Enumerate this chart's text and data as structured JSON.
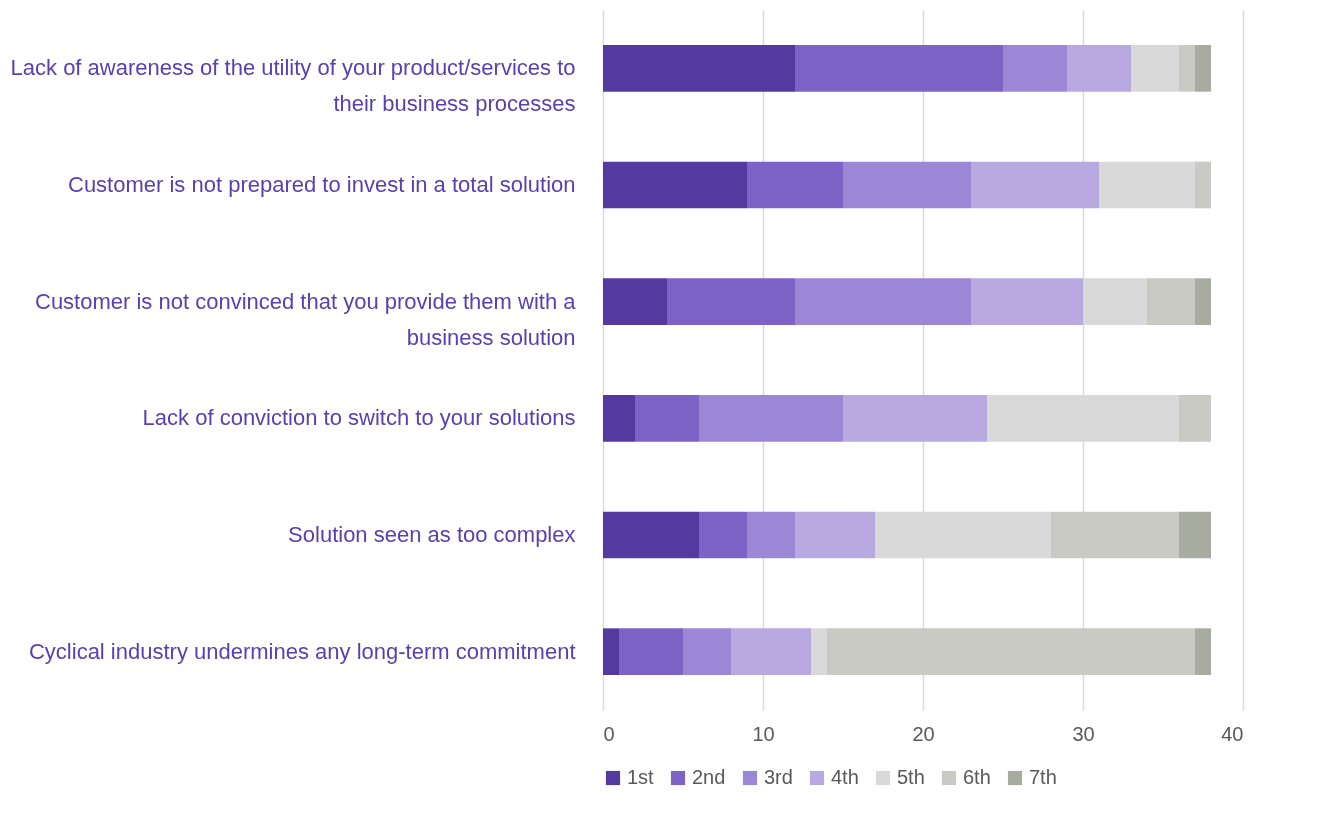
{
  "chart_data": {
    "type": "bar",
    "orientation": "horizontal",
    "stacked": true,
    "categories": [
      "Lack of awareness of the utility of your product/services to their business processes",
      "Customer is not prepared to invest in a total solution",
      "Customer is not convinced that you provide them with a business solution",
      "Lack of conviction to switch to your solutions",
      "Solution seen as too complex",
      "Cyclical industry undermines any long-term commitment"
    ],
    "series": [
      {
        "name": "1st",
        "color": "#5339a0",
        "values": [
          12,
          9,
          4,
          2,
          6,
          1
        ]
      },
      {
        "name": "2nd",
        "color": "#7d63c6",
        "values": [
          13,
          6,
          8,
          4,
          3,
          4
        ]
      },
      {
        "name": "3rd",
        "color": "#9b87d6",
        "values": [
          4,
          8,
          11,
          9,
          3,
          3
        ]
      },
      {
        "name": "4th",
        "color": "#b8aae1",
        "values": [
          4,
          8,
          7,
          9,
          5,
          5
        ]
      },
      {
        "name": "5th",
        "color": "#d9d9d9",
        "values": [
          3,
          6,
          4,
          12,
          11,
          1
        ]
      },
      {
        "name": "6th",
        "color": "#c9cac4",
        "values": [
          1,
          1,
          3,
          2,
          8,
          23
        ]
      },
      {
        "name": "7th",
        "color": "#a8aba0",
        "values": [
          1,
          0,
          1,
          0,
          2,
          1
        ]
      }
    ],
    "xlim": [
      0,
      40
    ],
    "xticks": [
      0,
      10,
      20,
      30,
      40
    ],
    "grid": "x",
    "legend": "bottom"
  }
}
